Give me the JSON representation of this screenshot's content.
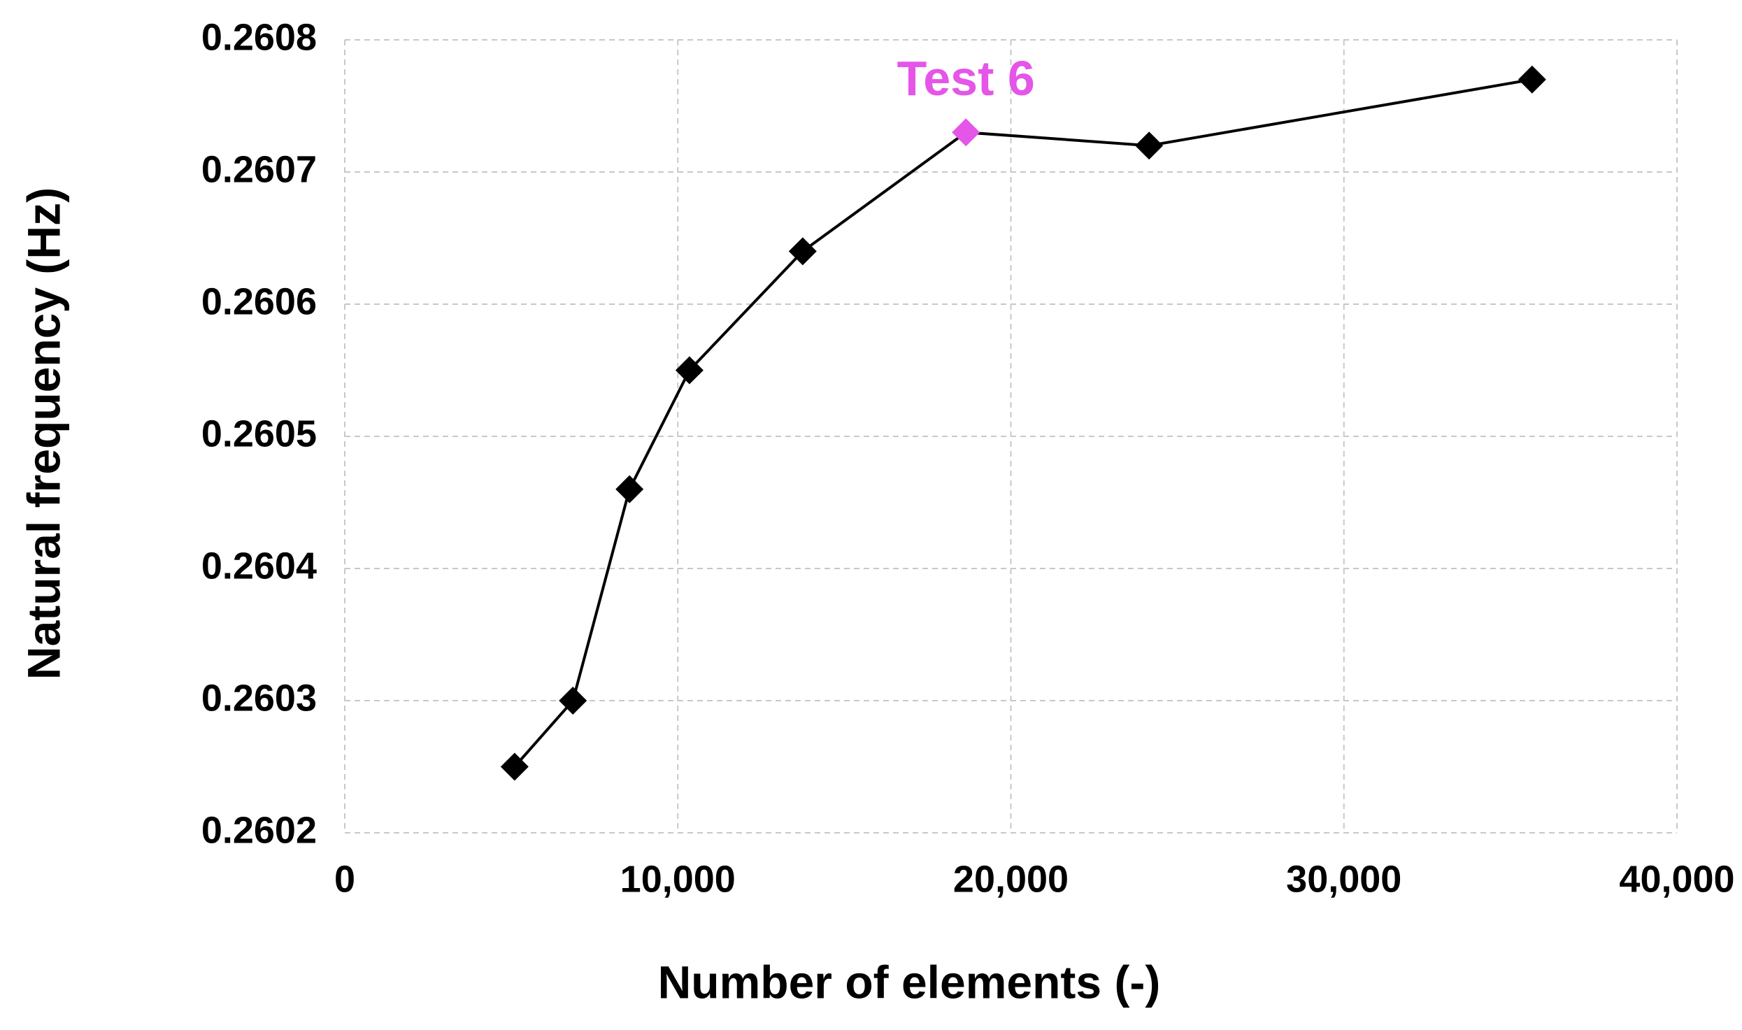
{
  "chart_data": {
    "type": "line",
    "x_label": "Number of elements (-)",
    "y_label": "Natural frequency (Hz)",
    "series": [
      {
        "color": "#000000",
        "x": [
          5100,
          6850,
          8550,
          10350,
          13750,
          18650,
          24150,
          35650
        ],
        "values": [
          0.26025,
          0.2603,
          0.26046,
          0.26055,
          0.26064,
          0.26073,
          0.26072,
          0.26077
        ],
        "marker_colors": [
          "#000000",
          "#000000",
          "#000000",
          "#000000",
          "#000000",
          "#e455e8",
          "#000000",
          "#000000"
        ]
      }
    ],
    "annotations": [
      {
        "text": "Test 6",
        "x": 18650,
        "y": 0.26073,
        "color": "#e455e8"
      }
    ],
    "xlim": [
      0,
      40000
    ],
    "xticks": [
      0,
      {
        "value": 10000,
        "label": "10,000"
      },
      {
        "value": 20000,
        "label": "20,000"
      },
      {
        "value": 30000,
        "label": "30,000"
      },
      {
        "value": 40000,
        "label": "40,000"
      }
    ],
    "ylim": [
      0.2602,
      0.2608
    ],
    "yticks": [
      0.2602,
      0.2603,
      0.2604,
      0.2605,
      0.2606,
      0.2607,
      0.2608
    ],
    "grid": true
  }
}
